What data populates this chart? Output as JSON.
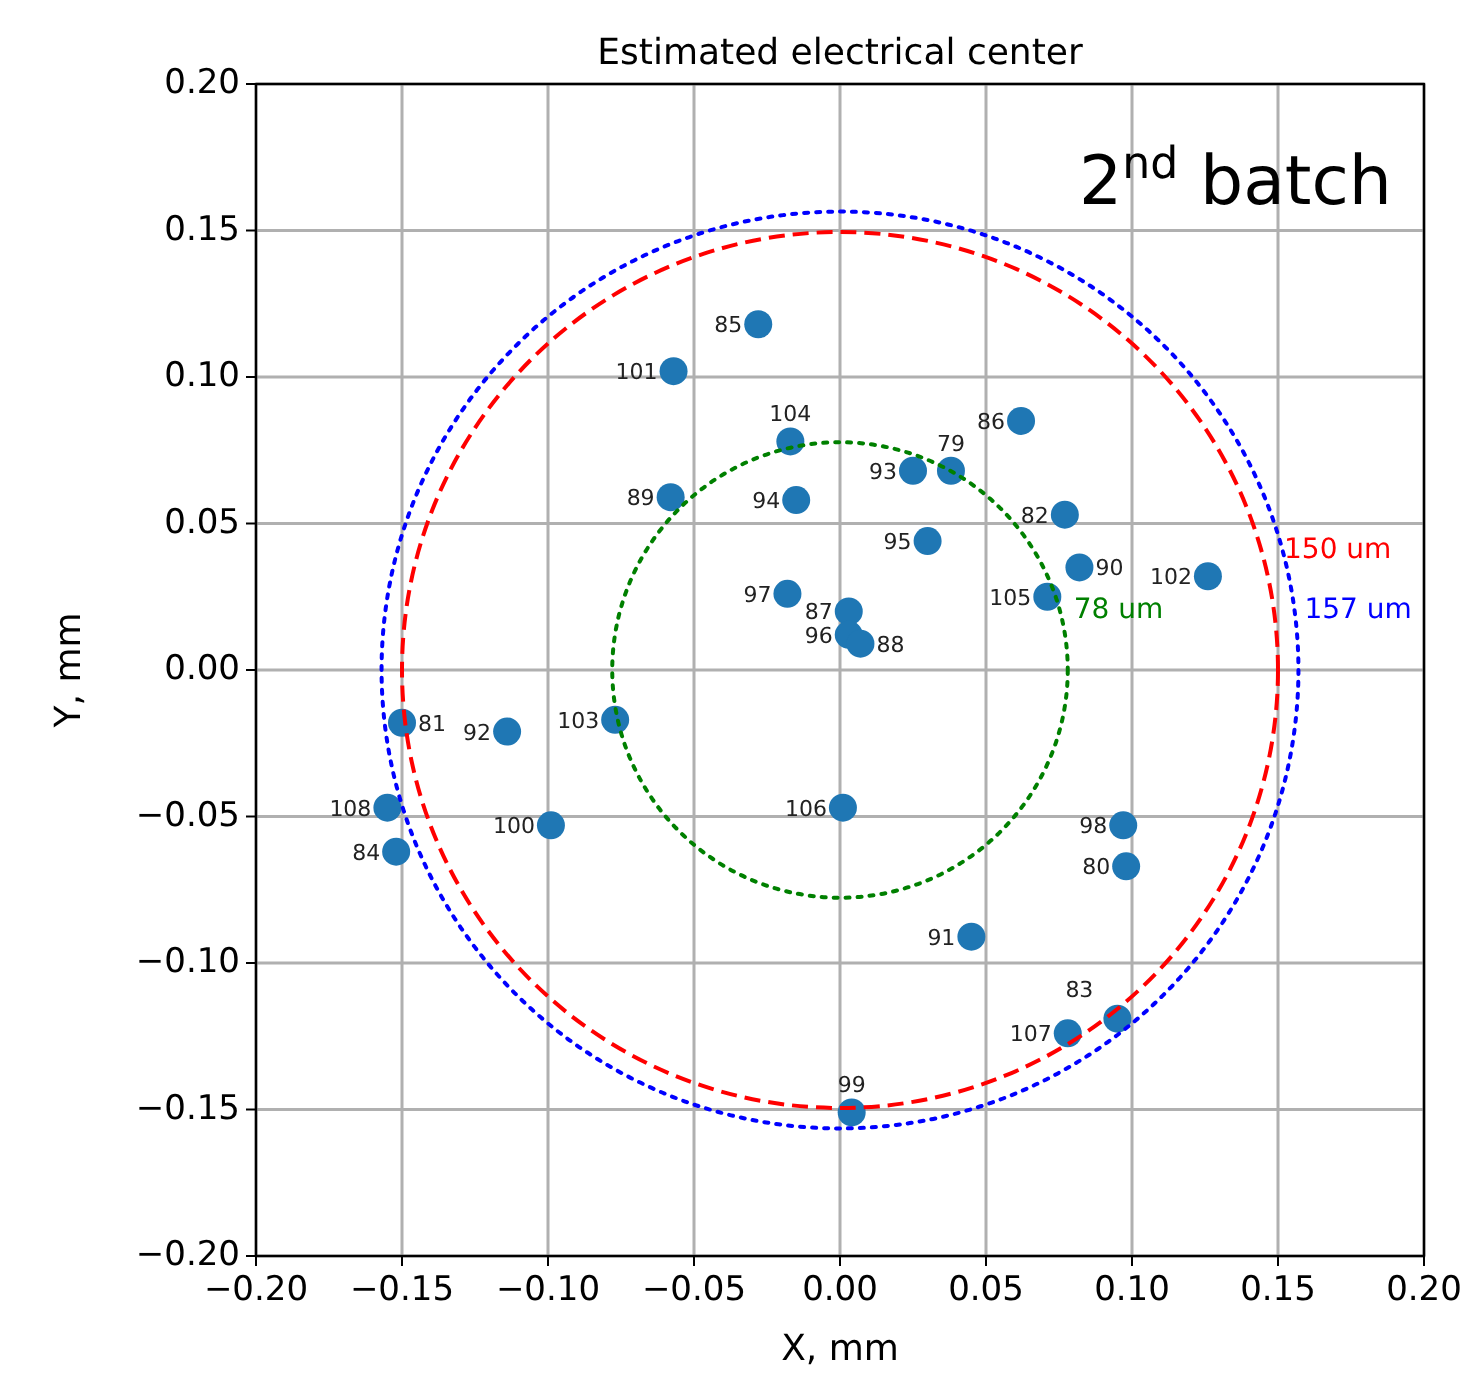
{
  "chart_data": {
    "type": "scatter",
    "title": "Estimated electrical center",
    "xlabel": "X, mm",
    "ylabel": "Y, mm",
    "annotations": [
      "2$^{nd}$ batch",
      "150 um",
      "157 um",
      "78 um",
      {
        "text": "85",
        "x": -0.028,
        "y": 0.118
      },
      {
        "text": "101",
        "x": -0.057,
        "y": 0.102
      },
      {
        "text": "104",
        "x": -0.017,
        "y": 0.078
      },
      {
        "text": "89",
        "x": -0.058,
        "y": 0.059
      },
      {
        "text": "94",
        "x": -0.015,
        "y": 0.058
      },
      {
        "text": "97",
        "x": -0.018,
        "y": 0.026
      },
      {
        "text": "87",
        "x": 0.003,
        "y": 0.02
      },
      {
        "text": "96",
        "x": 0.003,
        "y": 0.012
      },
      {
        "text": "88",
        "x": 0.007,
        "y": 0.009
      },
      {
        "text": "86",
        "x": 0.062,
        "y": 0.085
      },
      {
        "text": "93",
        "x": 0.025,
        "y": 0.068
      },
      {
        "text": "79",
        "x": 0.038,
        "y": 0.068
      },
      {
        "text": "82",
        "x": 0.077,
        "y": 0.053
      },
      {
        "text": "95",
        "x": 0.03,
        "y": 0.044
      },
      {
        "text": "90",
        "x": 0.082,
        "y": 0.035
      },
      {
        "text": "105",
        "x": 0.071,
        "y": 0.025
      },
      {
        "text": "102",
        "x": 0.126,
        "y": 0.032
      },
      {
        "text": "81",
        "x": -0.15,
        "y": -0.018
      },
      {
        "text": "92",
        "x": -0.114,
        "y": -0.021
      },
      {
        "text": "103",
        "x": -0.077,
        "y": -0.017
      },
      {
        "text": "108",
        "x": -0.155,
        "y": -0.047
      },
      {
        "text": "84",
        "x": -0.152,
        "y": -0.062
      },
      {
        "text": "100",
        "x": -0.099,
        "y": -0.053
      },
      {
        "text": "106",
        "x": 0.001,
        "y": -0.047
      },
      {
        "text": "98",
        "x": 0.097,
        "y": -0.053
      },
      {
        "text": "80",
        "x": 0.098,
        "y": -0.067
      },
      {
        "text": "91",
        "x": 0.045,
        "y": -0.091
      },
      {
        "text": "107",
        "x": 0.078,
        "y": -0.124
      },
      {
        "text": "83",
        "x": 0.095,
        "y": -0.119
      },
      {
        "text": "99",
        "x": 0.004,
        "y": -0.151
      }
    ],
    "xlim": [
      -0.2,
      0.2
    ],
    "ylim": [
      -0.2,
      0.2
    ],
    "xticks": [
      {
        "value": -0.2,
        "label": "−0.20"
      },
      {
        "value": -0.15,
        "label": "−0.15"
      },
      {
        "value": -0.1,
        "label": "−0.10"
      },
      {
        "value": -0.05,
        "label": "−0.05"
      },
      {
        "value": 0,
        "label": "0.00"
      },
      {
        "value": 0.05,
        "label": "0.05"
      },
      {
        "value": 0.1,
        "label": "0.10"
      },
      {
        "value": 0.15,
        "label": "0.15"
      },
      {
        "value": 0.2,
        "label": "0.20"
      }
    ],
    "yticks": [
      {
        "value": -0.2,
        "label": "−0.20"
      },
      {
        "value": -0.15,
        "label": "−0.15"
      },
      {
        "value": -0.1,
        "label": "−0.10"
      },
      {
        "value": -0.05,
        "label": "−0.05"
      },
      {
        "value": 0,
        "label": "0.00"
      },
      {
        "value": 0.05,
        "label": "0.05"
      },
      {
        "value": 0.1,
        "label": "0.10"
      },
      {
        "value": 0.15,
        "label": "0.15"
      },
      {
        "value": 0.2,
        "label": "0.20"
      }
    ],
    "grid": true,
    "series": [
      {
        "marker": "circle",
        "color": "#1f77b4",
        "x": [
          -0.028,
          -0.057,
          -0.017,
          -0.058,
          -0.015,
          -0.018,
          0.003,
          0.003,
          0.007,
          0.062,
          0.025,
          0.038,
          0.077,
          0.03,
          0.082,
          0.071,
          0.126,
          -0.15,
          -0.114,
          -0.077,
          -0.155,
          -0.152,
          -0.099,
          0.001,
          0.097,
          0.098,
          0.045,
          0.078,
          0.095,
          0.004
        ],
        "values": [
          0.118,
          0.102,
          0.078,
          0.059,
          0.058,
          0.026,
          0.02,
          0.012,
          0.009,
          0.085,
          0.068,
          0.068,
          0.053,
          0.044,
          0.035,
          0.025,
          0.032,
          -0.018,
          -0.021,
          -0.017,
          -0.047,
          -0.062,
          -0.053,
          -0.047,
          -0.053,
          -0.067,
          -0.091,
          -0.124,
          -0.119,
          -0.151
        ]
      }
    ]
  }
}
